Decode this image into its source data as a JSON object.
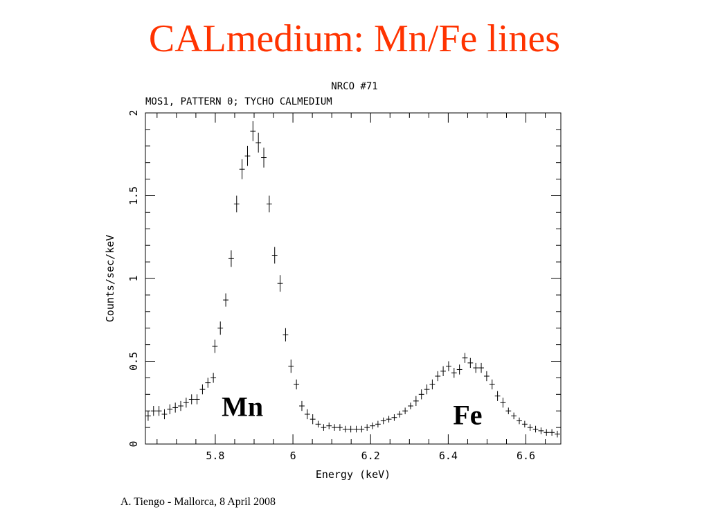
{
  "slide": {
    "title": "CALmedium: Mn/Fe lines",
    "footer": "A. Tiengo - Mallorca,  8 April 2008"
  },
  "colors": {
    "title": "#ff3300",
    "panel_background": "#ffffff",
    "data": "#000000"
  },
  "chart_data": {
    "type": "scatter",
    "marker": "error-cross",
    "title": "NRCO #71",
    "subtitle": "MOS1, PATTERN 0; TYCHO CALMEDIUM",
    "xlabel": "Energy (keV)",
    "ylabel": "Counts/sec/keV",
    "xlim": [
      5.62,
      6.69
    ],
    "ylim": [
      0,
      2
    ],
    "xticks": [
      5.8,
      6,
      6.2,
      6.4,
      6.6
    ],
    "xtick_labels": [
      "5.8",
      "6",
      "6.2",
      "6.4",
      "6.6"
    ],
    "yticks": [
      0,
      0.5,
      1,
      1.5,
      2
    ],
    "ytick_labels": [
      "0",
      "0.5",
      "1",
      "1.5",
      "2"
    ],
    "grid": false,
    "annotations": [
      {
        "text": "Mn",
        "x": 5.87,
        "y": 0.17
      },
      {
        "text": "Fe",
        "x": 6.45,
        "y": 0.12
      }
    ],
    "series": [
      {
        "x": [
          5.627,
          5.641,
          5.655,
          5.669,
          5.683,
          5.697,
          5.711,
          5.725,
          5.739,
          5.753,
          5.767,
          5.781,
          5.795,
          5.799,
          5.813,
          5.827,
          5.841,
          5.855,
          5.869,
          5.883,
          5.897,
          5.911,
          5.925,
          5.939,
          5.953,
          5.967,
          5.981,
          5.995,
          6.009,
          6.023,
          6.037,
          6.051,
          6.065,
          6.079,
          6.093,
          6.107,
          6.121,
          6.135,
          6.149,
          6.163,
          6.177,
          6.191,
          6.205,
          6.219,
          6.233,
          6.247,
          6.261,
          6.275,
          6.289,
          6.303,
          6.317,
          6.331,
          6.345,
          6.359,
          6.373,
          6.387,
          6.401,
          6.415,
          6.429,
          6.443,
          6.457,
          6.471,
          6.485,
          6.499,
          6.513,
          6.527,
          6.541,
          6.555,
          6.569,
          6.583,
          6.597,
          6.611,
          6.625,
          6.639,
          6.653,
          6.667,
          6.681
        ],
        "y": [
          0.17,
          0.2,
          0.2,
          0.18,
          0.21,
          0.22,
          0.23,
          0.25,
          0.27,
          0.27,
          0.33,
          0.37,
          0.4,
          0.59,
          0.7,
          0.87,
          1.12,
          1.45,
          1.66,
          1.74,
          1.89,
          1.82,
          1.73,
          1.45,
          1.14,
          0.97,
          0.66,
          0.47,
          0.36,
          0.23,
          0.18,
          0.15,
          0.12,
          0.1,
          0.11,
          0.1,
          0.1,
          0.09,
          0.09,
          0.09,
          0.09,
          0.1,
          0.11,
          0.12,
          0.14,
          0.15,
          0.16,
          0.18,
          0.2,
          0.23,
          0.26,
          0.3,
          0.33,
          0.36,
          0.41,
          0.44,
          0.47,
          0.43,
          0.45,
          0.52,
          0.49,
          0.46,
          0.46,
          0.41,
          0.36,
          0.29,
          0.25,
          0.2,
          0.17,
          0.14,
          0.12,
          0.1,
          0.09,
          0.08,
          0.07,
          0.07,
          0.06
        ],
        "yerr": [
          0.03,
          0.03,
          0.03,
          0.03,
          0.03,
          0.03,
          0.03,
          0.03,
          0.03,
          0.03,
          0.03,
          0.03,
          0.03,
          0.04,
          0.04,
          0.04,
          0.05,
          0.05,
          0.06,
          0.06,
          0.06,
          0.06,
          0.06,
          0.05,
          0.05,
          0.05,
          0.04,
          0.04,
          0.03,
          0.03,
          0.03,
          0.03,
          0.02,
          0.02,
          0.02,
          0.02,
          0.02,
          0.02,
          0.02,
          0.02,
          0.02,
          0.02,
          0.02,
          0.02,
          0.02,
          0.02,
          0.02,
          0.02,
          0.02,
          0.02,
          0.03,
          0.03,
          0.03,
          0.03,
          0.03,
          0.03,
          0.03,
          0.03,
          0.03,
          0.03,
          0.03,
          0.03,
          0.03,
          0.03,
          0.03,
          0.03,
          0.03,
          0.02,
          0.02,
          0.02,
          0.02,
          0.02,
          0.02,
          0.02,
          0.02,
          0.02,
          0.02
        ]
      }
    ]
  }
}
